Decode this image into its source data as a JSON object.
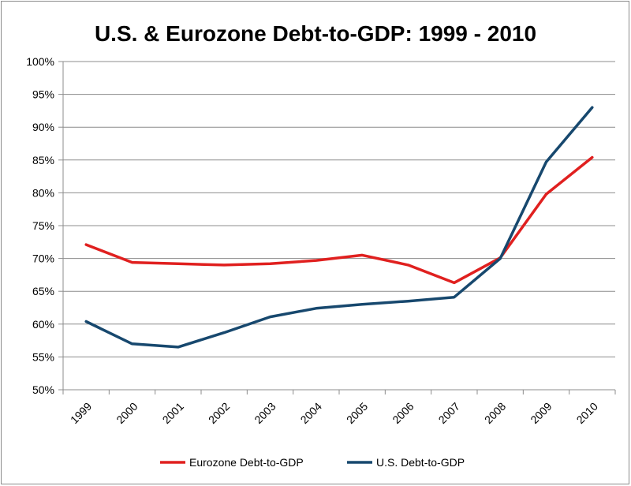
{
  "chart_data": {
    "type": "line",
    "title": "U.S. & Eurozone Debt-to-GDP: 1999 - 2010",
    "xlabel": "",
    "ylabel": "",
    "categories": [
      "1999",
      "2000",
      "2001",
      "2002",
      "2003",
      "2004",
      "2005",
      "2006",
      "2007",
      "2008",
      "2009",
      "2010"
    ],
    "ylim": [
      50,
      100
    ],
    "ytick_step": 5,
    "ytick_labels": [
      "50%",
      "55%",
      "60%",
      "65%",
      "70%",
      "75%",
      "80%",
      "85%",
      "90%",
      "95%",
      "100%"
    ],
    "grid": true,
    "legend_position": "bottom",
    "series": [
      {
        "name": "Eurozone Debt-to-GDP",
        "color": "#e0201f",
        "values": [
          72.1,
          69.4,
          69.2,
          69.0,
          69.2,
          69.7,
          70.5,
          69.0,
          66.3,
          70.1,
          79.8,
          85.4
        ]
      },
      {
        "name": "U.S. Debt-to-GDP",
        "color": "#17486e",
        "values": [
          60.4,
          57.0,
          56.5,
          58.7,
          61.1,
          62.4,
          63.0,
          63.5,
          64.1,
          70.0,
          84.7,
          93.0
        ]
      }
    ]
  }
}
